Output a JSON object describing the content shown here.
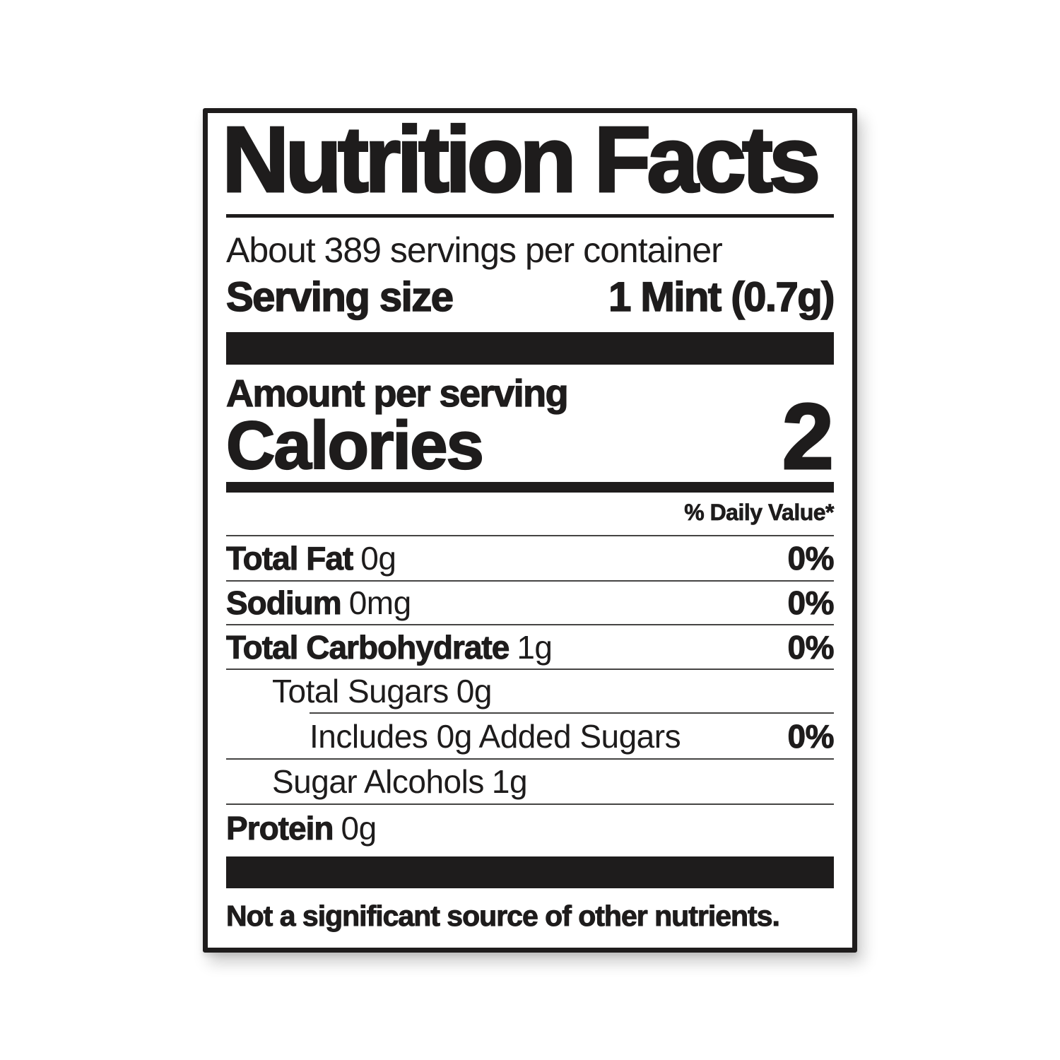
{
  "label": {
    "title": "Nutrition Facts",
    "servings_per_container": "About 389 servings per container",
    "serving_size": {
      "label": "Serving size",
      "value": "1 Mint (0.7g)"
    },
    "amount_per_serving": "Amount per serving",
    "calories": {
      "label": "Calories",
      "value": "2"
    },
    "daily_value_header": "% Daily Value*",
    "nutrients": [
      {
        "name": "Total Fat",
        "amount": "0g",
        "daily_value": "0%"
      },
      {
        "name": "Sodium",
        "amount": "0mg",
        "daily_value": "0%"
      },
      {
        "name": "Total Carbohydrate",
        "amount": "1g",
        "daily_value": "0%"
      },
      {
        "name": "Total Sugars",
        "amount": "0g",
        "daily_value": ""
      },
      {
        "name": "Includes 0g Added Sugars",
        "amount": "",
        "daily_value": "0%"
      },
      {
        "name": "Sugar Alcohols",
        "amount": "1g",
        "daily_value": ""
      },
      {
        "name": "Protein",
        "amount": "0g",
        "daily_value": ""
      }
    ],
    "footnote": "Not a significant source of other nutrients."
  },
  "colors": {
    "ink": "#1e1c1c",
    "rule": "#454443",
    "background": "#ffffff"
  }
}
